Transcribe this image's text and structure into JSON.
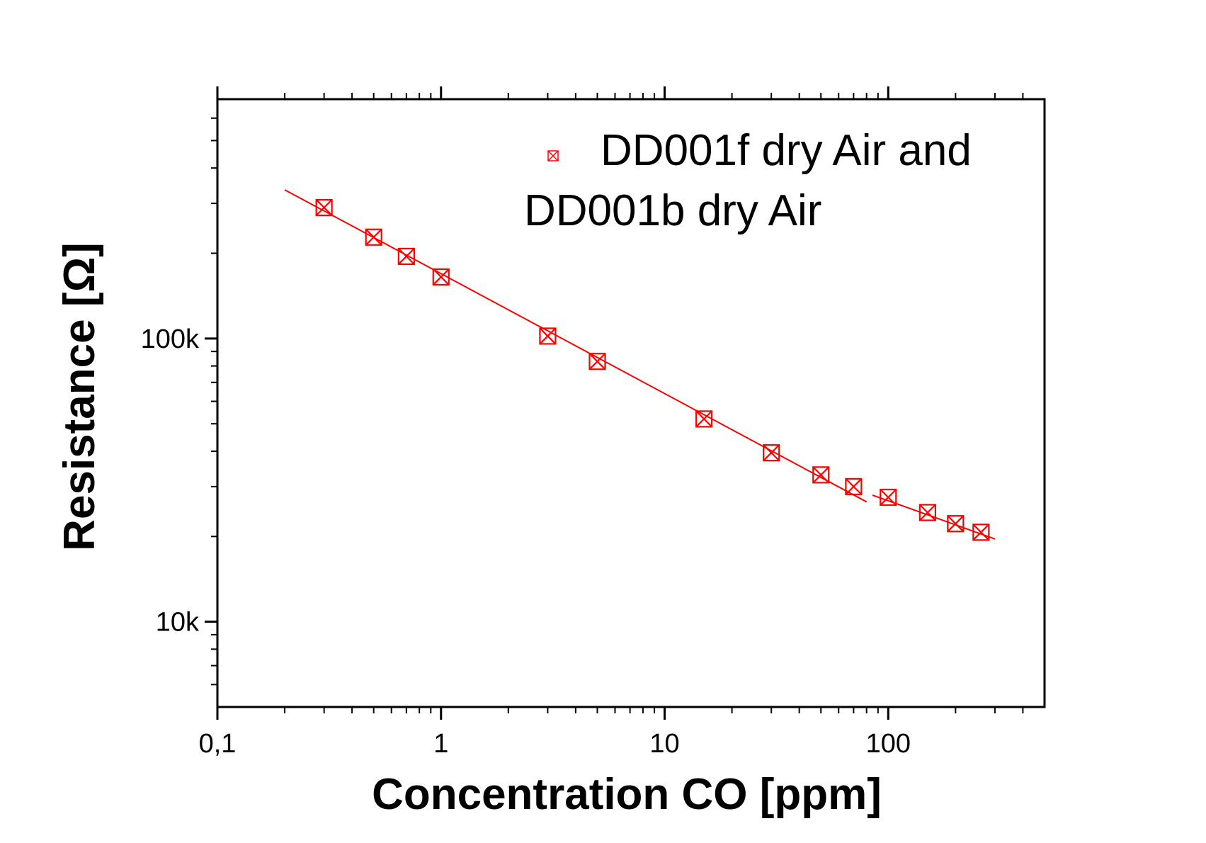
{
  "chart_data": {
    "type": "scatter",
    "xscale": "log",
    "yscale": "log",
    "xlim": [
      0.1,
      500
    ],
    "ylim": [
      5000,
      700000
    ],
    "grid": false,
    "legend_position": "top-right",
    "xlabel": "Concentration CO [ppm]",
    "ylabel": "Resistance [Ω]",
    "x_ticks": [
      {
        "value": 0.1,
        "label": "0,1"
      },
      {
        "value": 1,
        "label": "1"
      },
      {
        "value": 10,
        "label": "10"
      },
      {
        "value": 100,
        "label": "100"
      }
    ],
    "y_ticks": [
      {
        "value": 10000,
        "label": "10k"
      },
      {
        "value": 100000,
        "label": "100k"
      }
    ],
    "legend": {
      "line1": "DD001f dry Air and",
      "line2": "DD001b dry Air"
    },
    "color": "#ff0000",
    "series": [
      {
        "name": "DD001f dry Air and DD001b dry Air",
        "x": [
          0.3,
          0.5,
          0.7,
          1,
          3,
          5,
          15,
          30,
          50,
          70,
          100,
          150,
          200,
          260
        ],
        "y": [
          290000,
          228000,
          195000,
          165000,
          102000,
          83000,
          52000,
          39500,
          33000,
          30000,
          27500,
          24300,
          22200,
          20700
        ]
      }
    ],
    "fit_lines": [
      {
        "x": [
          0.2,
          80
        ],
        "y": [
          335000,
          26500
        ]
      },
      {
        "x": [
          85,
          300
        ],
        "y": [
          28000,
          19600
        ]
      }
    ]
  }
}
